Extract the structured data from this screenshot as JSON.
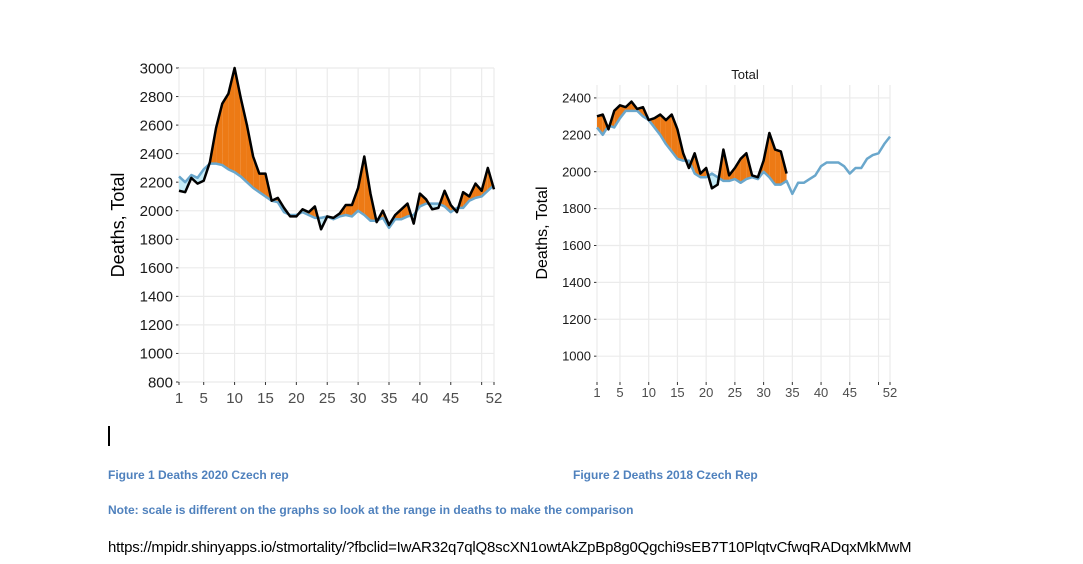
{
  "captions": {
    "figure1": "Figure 1 Deaths 2020  Czech rep",
    "figure2": "Figure 2 Deaths 2018  Czech Rep",
    "note": "Note: scale is different on the graphs so look at the range in deaths to make the comparison",
    "url": "https://mpidr.shinyapps.io/stmortality/?fbclid=IwAR32q7qlQ8scXN1owtAkZpBp8g0Qgchi9sEB7T10PlqtvCfwqRADqxMkMwM"
  },
  "chart_data": [
    {
      "type": "line",
      "title": "",
      "xlabel": "",
      "ylabel": "Deaths, Total",
      "xlim": [
        1,
        52
      ],
      "ylim": [
        800,
        3000
      ],
      "x_ticks": [
        "1",
        "5",
        "10",
        "15",
        "20",
        "25",
        "30",
        "35",
        "40",
        "45",
        "52"
      ],
      "y_ticks": [
        "800",
        "1000",
        "1200",
        "1400",
        "1600",
        "1800",
        "2000",
        "2200",
        "2400",
        "2600",
        "2800",
        "3000"
      ],
      "colors": {
        "actual": "#000000",
        "expected": "#6aa7cc",
        "excess": "#ed7a15",
        "deficit": "#c6ecf7"
      },
      "series": [
        {
          "name": "actual",
          "values": [
            2140,
            2130,
            2230,
            2190,
            2210,
            2340,
            2580,
            2750,
            2820,
            3000,
            2790,
            2600,
            2380,
            2260,
            2260,
            2070,
            2090,
            2020,
            1960,
            1960,
            2010,
            1990,
            2030,
            1870,
            1960,
            1950,
            1980,
            2040,
            2040,
            2160,
            2380,
            2120,
            1920,
            2000,
            1900,
            1970,
            2010,
            2050,
            1910,
            2120,
            2080,
            2010,
            2020,
            2140,
            2040,
            1990,
            2130,
            2100,
            2190,
            2140,
            2300,
            2150
          ]
        },
        {
          "name": "expected",
          "values": [
            2240,
            2200,
            2250,
            2230,
            2290,
            2330,
            2330,
            2320,
            2290,
            2270,
            2240,
            2200,
            2160,
            2130,
            2100,
            2070,
            2060,
            1990,
            1970,
            1970,
            1990,
            1970,
            1950,
            1950,
            1960,
            1940,
            1960,
            1970,
            1960,
            2000,
            1970,
            1930,
            1930,
            1950,
            1880,
            1940,
            1940,
            1960,
            1970,
            2030,
            2050,
            2050,
            2050,
            2030,
            1990,
            2020,
            2020,
            2070,
            2090,
            2100,
            2140,
            2180
          ]
        }
      ]
    },
    {
      "type": "line",
      "title": "Total",
      "xlabel": "",
      "ylabel": "Deaths, Total",
      "xlim": [
        1,
        52
      ],
      "ylim": [
        860,
        2470
      ],
      "x_ticks": [
        "1",
        "5",
        "10",
        "15",
        "20",
        "25",
        "30",
        "35",
        "40",
        "45",
        "52"
      ],
      "y_ticks": [
        "1000",
        "1200",
        "1400",
        "1600",
        "1800",
        "2000",
        "2200",
        "2400"
      ],
      "colors": {
        "actual": "#000000",
        "expected": "#6aa7cc",
        "excess": "#ed7a15",
        "deficit": "#c6ecf7"
      },
      "series": [
        {
          "name": "actual",
          "values": [
            2300,
            2310,
            2230,
            2330,
            2360,
            2350,
            2380,
            2340,
            2350,
            2280,
            2290,
            2310,
            2280,
            2310,
            2230,
            2100,
            2020,
            2100,
            1990,
            2020,
            1910,
            1930,
            2120,
            1980,
            2020,
            2070,
            2100,
            1980,
            1970,
            2060,
            2210,
            2120,
            2110,
            1990
          ]
        },
        {
          "name": "expected",
          "values": [
            2240,
            2200,
            2250,
            2240,
            2290,
            2330,
            2330,
            2330,
            2300,
            2280,
            2240,
            2200,
            2150,
            2110,
            2070,
            2060,
            2060,
            1990,
            1970,
            1970,
            1990,
            1970,
            1950,
            1950,
            1960,
            1940,
            1960,
            1970,
            1960,
            2000,
            1970,
            1930,
            1930,
            1950,
            1880,
            1940,
            1940,
            1960,
            1980,
            2030,
            2050,
            2050,
            2050,
            2030,
            1990,
            2020,
            2020,
            2070,
            2090,
            2100,
            2150,
            2190
          ]
        }
      ]
    }
  ]
}
